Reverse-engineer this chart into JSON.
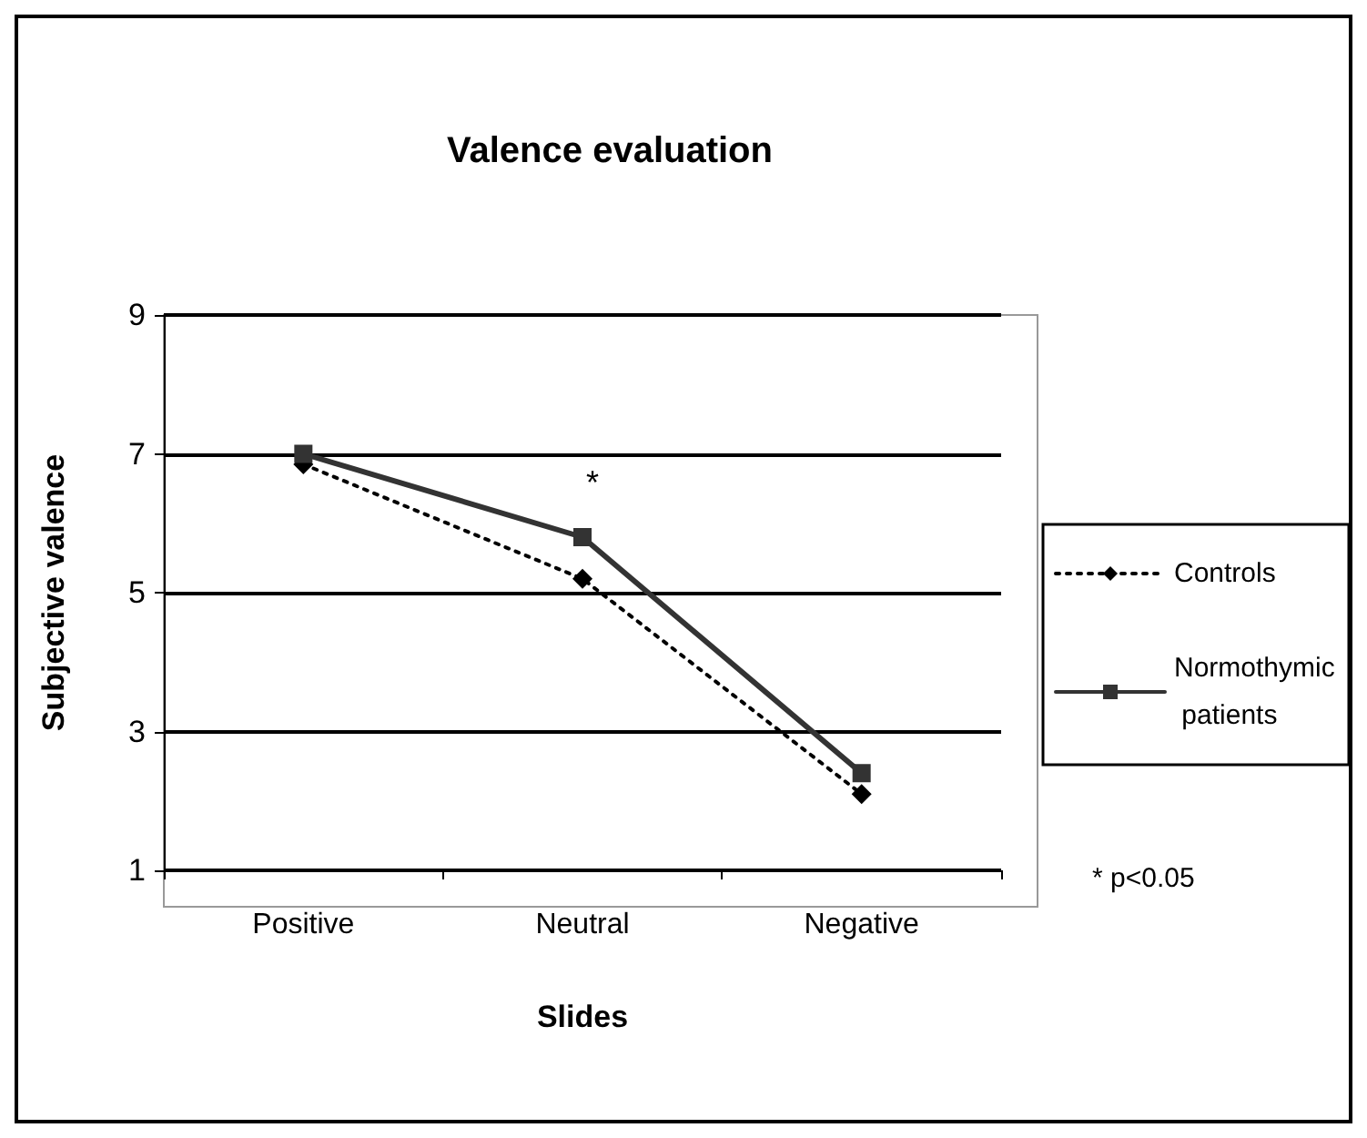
{
  "chart_data": {
    "type": "line",
    "title": "Valence evaluation",
    "xlabel": "Slides",
    "ylabel": "Subjective valence",
    "categories": [
      "Positive",
      "Neutral",
      "Negative"
    ],
    "series": [
      {
        "name": "Controls",
        "color": "#000000",
        "values": [
          6.85,
          5.2,
          2.1
        ],
        "marker": "diamond",
        "line_style": "dotted"
      },
      {
        "name": "Normothymic patients",
        "color": "#333333",
        "values": [
          7.0,
          5.8,
          2.4
        ],
        "marker": "square",
        "line_style": "solid"
      }
    ],
    "ylim": [
      1,
      9
    ],
    "yticks": [
      1,
      3,
      5,
      7,
      9
    ],
    "grid": "y",
    "legend": "right",
    "annotations": [
      "*",
      "* p<0.05"
    ]
  }
}
